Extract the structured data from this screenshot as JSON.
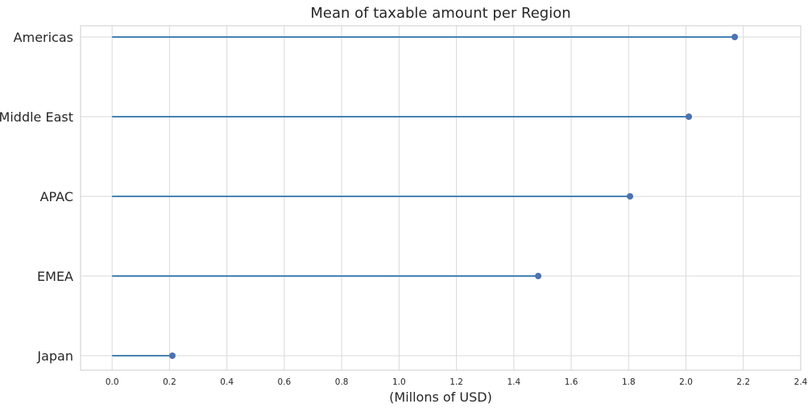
{
  "chart_data": {
    "type": "lollipop",
    "title": "Mean of taxable amount per Region",
    "xlabel": "(Millons of USD)",
    "ylabel": "",
    "categories": [
      "Americas",
      "Middle East",
      "APAC",
      "EMEA",
      "Japan"
    ],
    "values": [
      2.17,
      2.01,
      1.805,
      1.485,
      0.21
    ],
    "xlim": [
      -0.11,
      2.4
    ],
    "xticks": [
      "0.0",
      "0.2",
      "0.4",
      "0.6",
      "0.8",
      "1.0",
      "1.2",
      "1.4",
      "1.6",
      "1.8",
      "2.0",
      "2.2",
      "2.4"
    ],
    "grid": true,
    "line_color": "#4682b4",
    "marker_color": "#4c72b0"
  }
}
